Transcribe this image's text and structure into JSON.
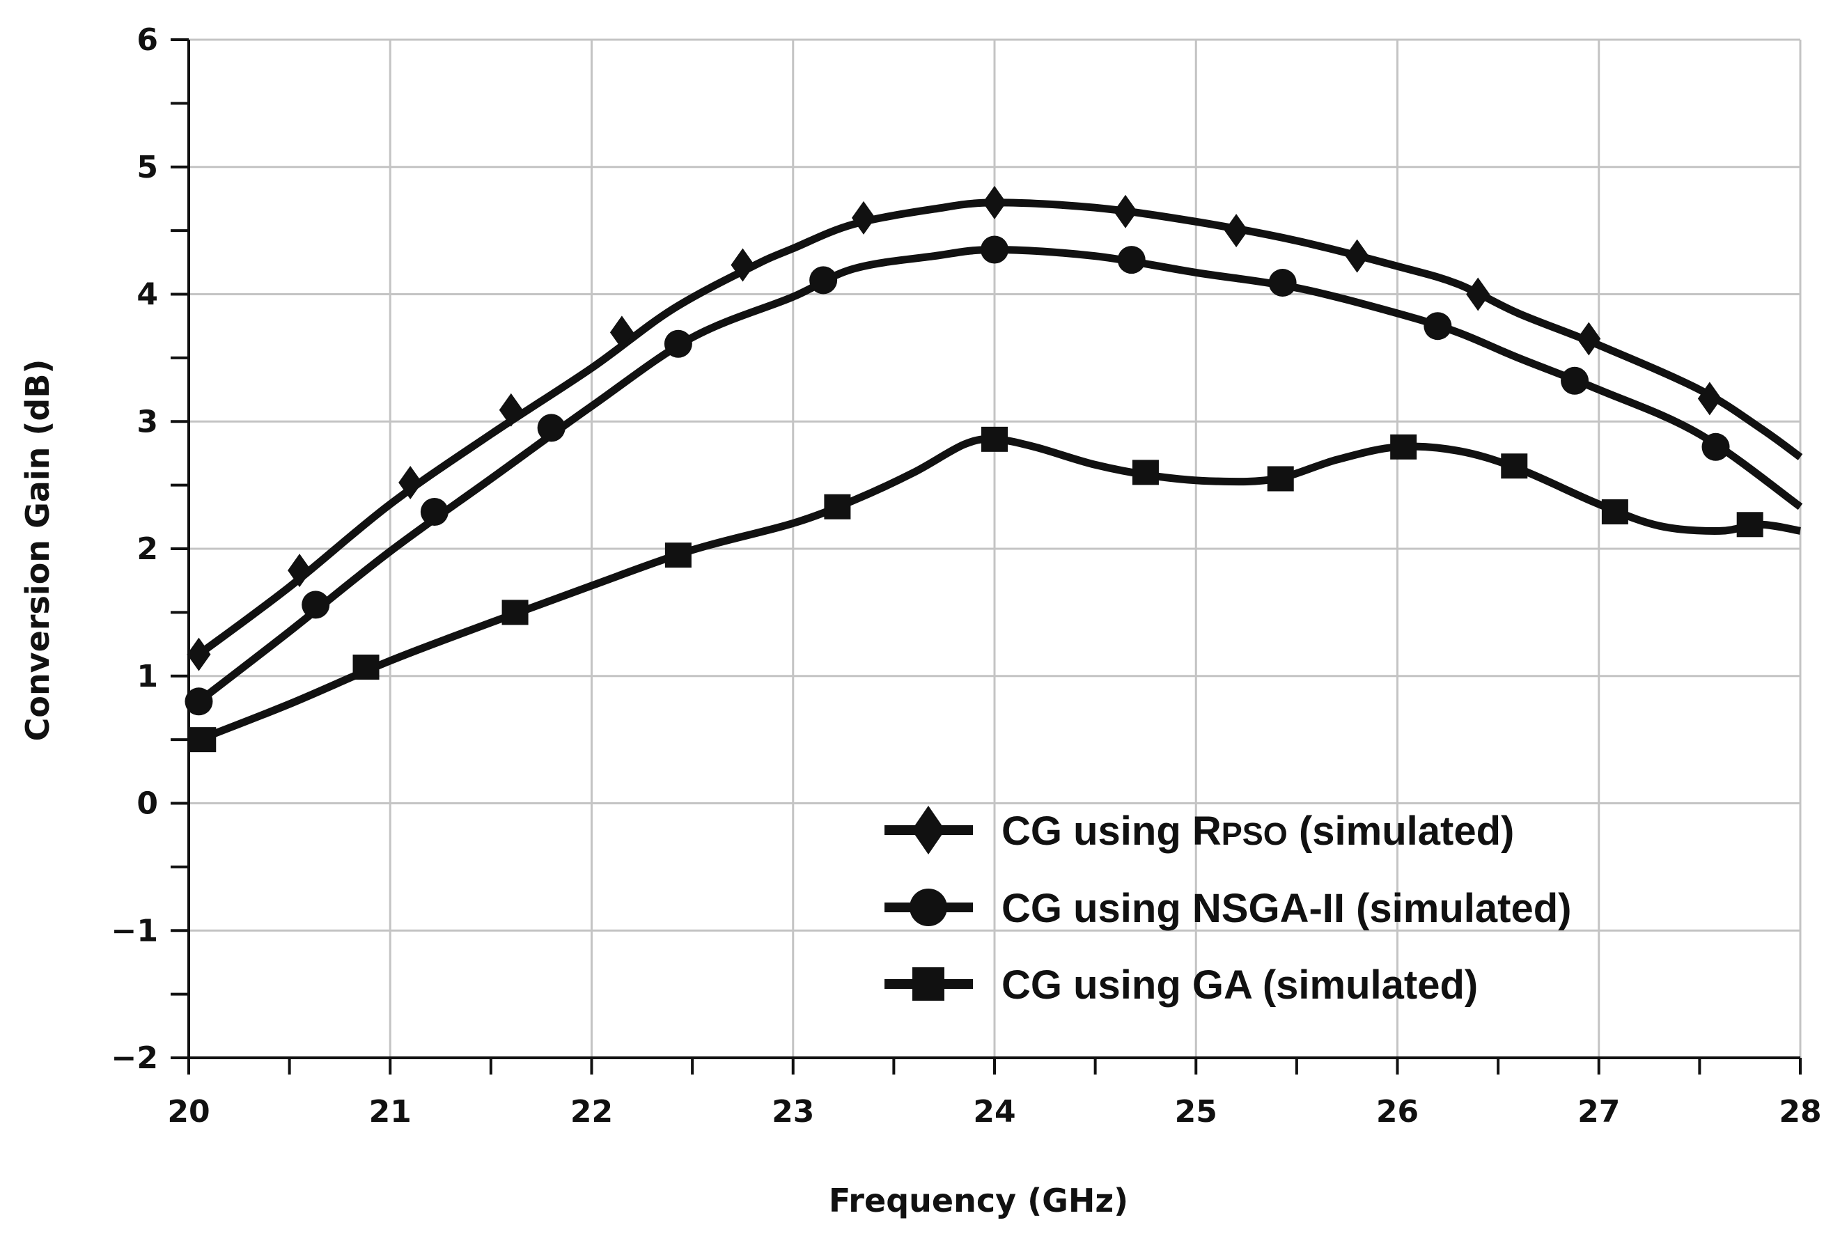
{
  "chart_data": {
    "type": "line",
    "title": "",
    "xlabel": "Frequency (GHz)",
    "ylabel": "Conversion Gain (dB)",
    "xlim": [
      20,
      28
    ],
    "ylim": [
      -2,
      6
    ],
    "x_ticks": [
      "20",
      "21",
      "22",
      "23",
      "24",
      "25",
      "26",
      "27",
      "28"
    ],
    "y_ticks": [
      "−2",
      "−1",
      "0",
      "1",
      "2",
      "3",
      "4",
      "5",
      "6"
    ],
    "grid": true,
    "legend_position": "bottom-right",
    "colors": {
      "line": "#111111",
      "grid": "#c4c4c4",
      "axis": "#111111"
    },
    "series": [
      {
        "name": "CG using RPSO (simulated)",
        "legend_prefix": "CG using R",
        "legend_smallcaps": "PSO",
        "legend_suffix": " (simulated)",
        "marker": "diamond",
        "line": [
          [
            20.05,
            1.17
          ],
          [
            20.5,
            1.7
          ],
          [
            21,
            2.35
          ],
          [
            21.5,
            2.9
          ],
          [
            22,
            3.42
          ],
          [
            22.4,
            3.88
          ],
          [
            22.8,
            4.22
          ],
          [
            23,
            4.36
          ],
          [
            23.3,
            4.55
          ],
          [
            23.7,
            4.67
          ],
          [
            24,
            4.72
          ],
          [
            24.5,
            4.68
          ],
          [
            25,
            4.57
          ],
          [
            25.5,
            4.42
          ],
          [
            26,
            4.22
          ],
          [
            26.3,
            4.08
          ],
          [
            26.6,
            3.85
          ],
          [
            27,
            3.6
          ],
          [
            27.5,
            3.25
          ],
          [
            27.8,
            2.95
          ],
          [
            28,
            2.72
          ]
        ],
        "markers": [
          [
            20.05,
            1.17
          ],
          [
            20.55,
            1.83
          ],
          [
            21.1,
            2.52
          ],
          [
            21.6,
            3.09
          ],
          [
            22.15,
            3.7
          ],
          [
            22.75,
            4.23
          ],
          [
            23.35,
            4.6
          ],
          [
            24,
            4.72
          ],
          [
            24.65,
            4.65
          ],
          [
            25.2,
            4.5
          ],
          [
            25.8,
            4.3
          ],
          [
            26.4,
            4.0
          ],
          [
            26.95,
            3.65
          ],
          [
            27.55,
            3.18
          ]
        ]
      },
      {
        "name": "CG using NSGA-II (simulated)",
        "marker": "circle",
        "line": [
          [
            20.05,
            0.8
          ],
          [
            20.5,
            1.35
          ],
          [
            21,
            1.98
          ],
          [
            21.5,
            2.55
          ],
          [
            22,
            3.12
          ],
          [
            22.5,
            3.66
          ],
          [
            23,
            3.98
          ],
          [
            23.3,
            4.2
          ],
          [
            23.7,
            4.3
          ],
          [
            24,
            4.35
          ],
          [
            24.5,
            4.3
          ],
          [
            25,
            4.17
          ],
          [
            25.5,
            4.05
          ],
          [
            26,
            3.85
          ],
          [
            26.3,
            3.7
          ],
          [
            26.6,
            3.5
          ],
          [
            27,
            3.25
          ],
          [
            27.5,
            2.9
          ],
          [
            28,
            2.33
          ]
        ],
        "markers": [
          [
            20.05,
            0.8
          ],
          [
            20.63,
            1.56
          ],
          [
            21.22,
            2.29
          ],
          [
            21.8,
            2.95
          ],
          [
            22.43,
            3.61
          ],
          [
            23.15,
            4.11
          ],
          [
            24,
            4.35
          ],
          [
            24.68,
            4.27
          ],
          [
            25.43,
            4.09
          ],
          [
            26.2,
            3.75
          ],
          [
            26.88,
            3.32
          ],
          [
            27.58,
            2.8
          ]
        ]
      },
      {
        "name": "CG using GA (simulated)",
        "marker": "square",
        "line": [
          [
            20.05,
            0.5
          ],
          [
            20.5,
            0.78
          ],
          [
            21,
            1.12
          ],
          [
            21.5,
            1.42
          ],
          [
            22,
            1.71
          ],
          [
            22.5,
            1.99
          ],
          [
            23,
            2.2
          ],
          [
            23.3,
            2.38
          ],
          [
            23.6,
            2.6
          ],
          [
            23.85,
            2.82
          ],
          [
            24,
            2.86
          ],
          [
            24.2,
            2.8
          ],
          [
            24.5,
            2.66
          ],
          [
            24.8,
            2.57
          ],
          [
            25.1,
            2.53
          ],
          [
            25.4,
            2.55
          ],
          [
            25.7,
            2.7
          ],
          [
            26,
            2.8
          ],
          [
            26.3,
            2.77
          ],
          [
            26.6,
            2.63
          ],
          [
            27,
            2.35
          ],
          [
            27.3,
            2.18
          ],
          [
            27.6,
            2.14
          ],
          [
            27.8,
            2.19
          ],
          [
            28,
            2.14
          ]
        ],
        "markers": [
          [
            20.07,
            0.5
          ],
          [
            20.88,
            1.07
          ],
          [
            21.62,
            1.5
          ],
          [
            22.43,
            1.95
          ],
          [
            23.22,
            2.33
          ],
          [
            24,
            2.86
          ],
          [
            24.75,
            2.6
          ],
          [
            25.42,
            2.55
          ],
          [
            26.03,
            2.8
          ],
          [
            26.58,
            2.65
          ],
          [
            27.08,
            2.29
          ],
          [
            27.75,
            2.19
          ]
        ]
      }
    ]
  }
}
